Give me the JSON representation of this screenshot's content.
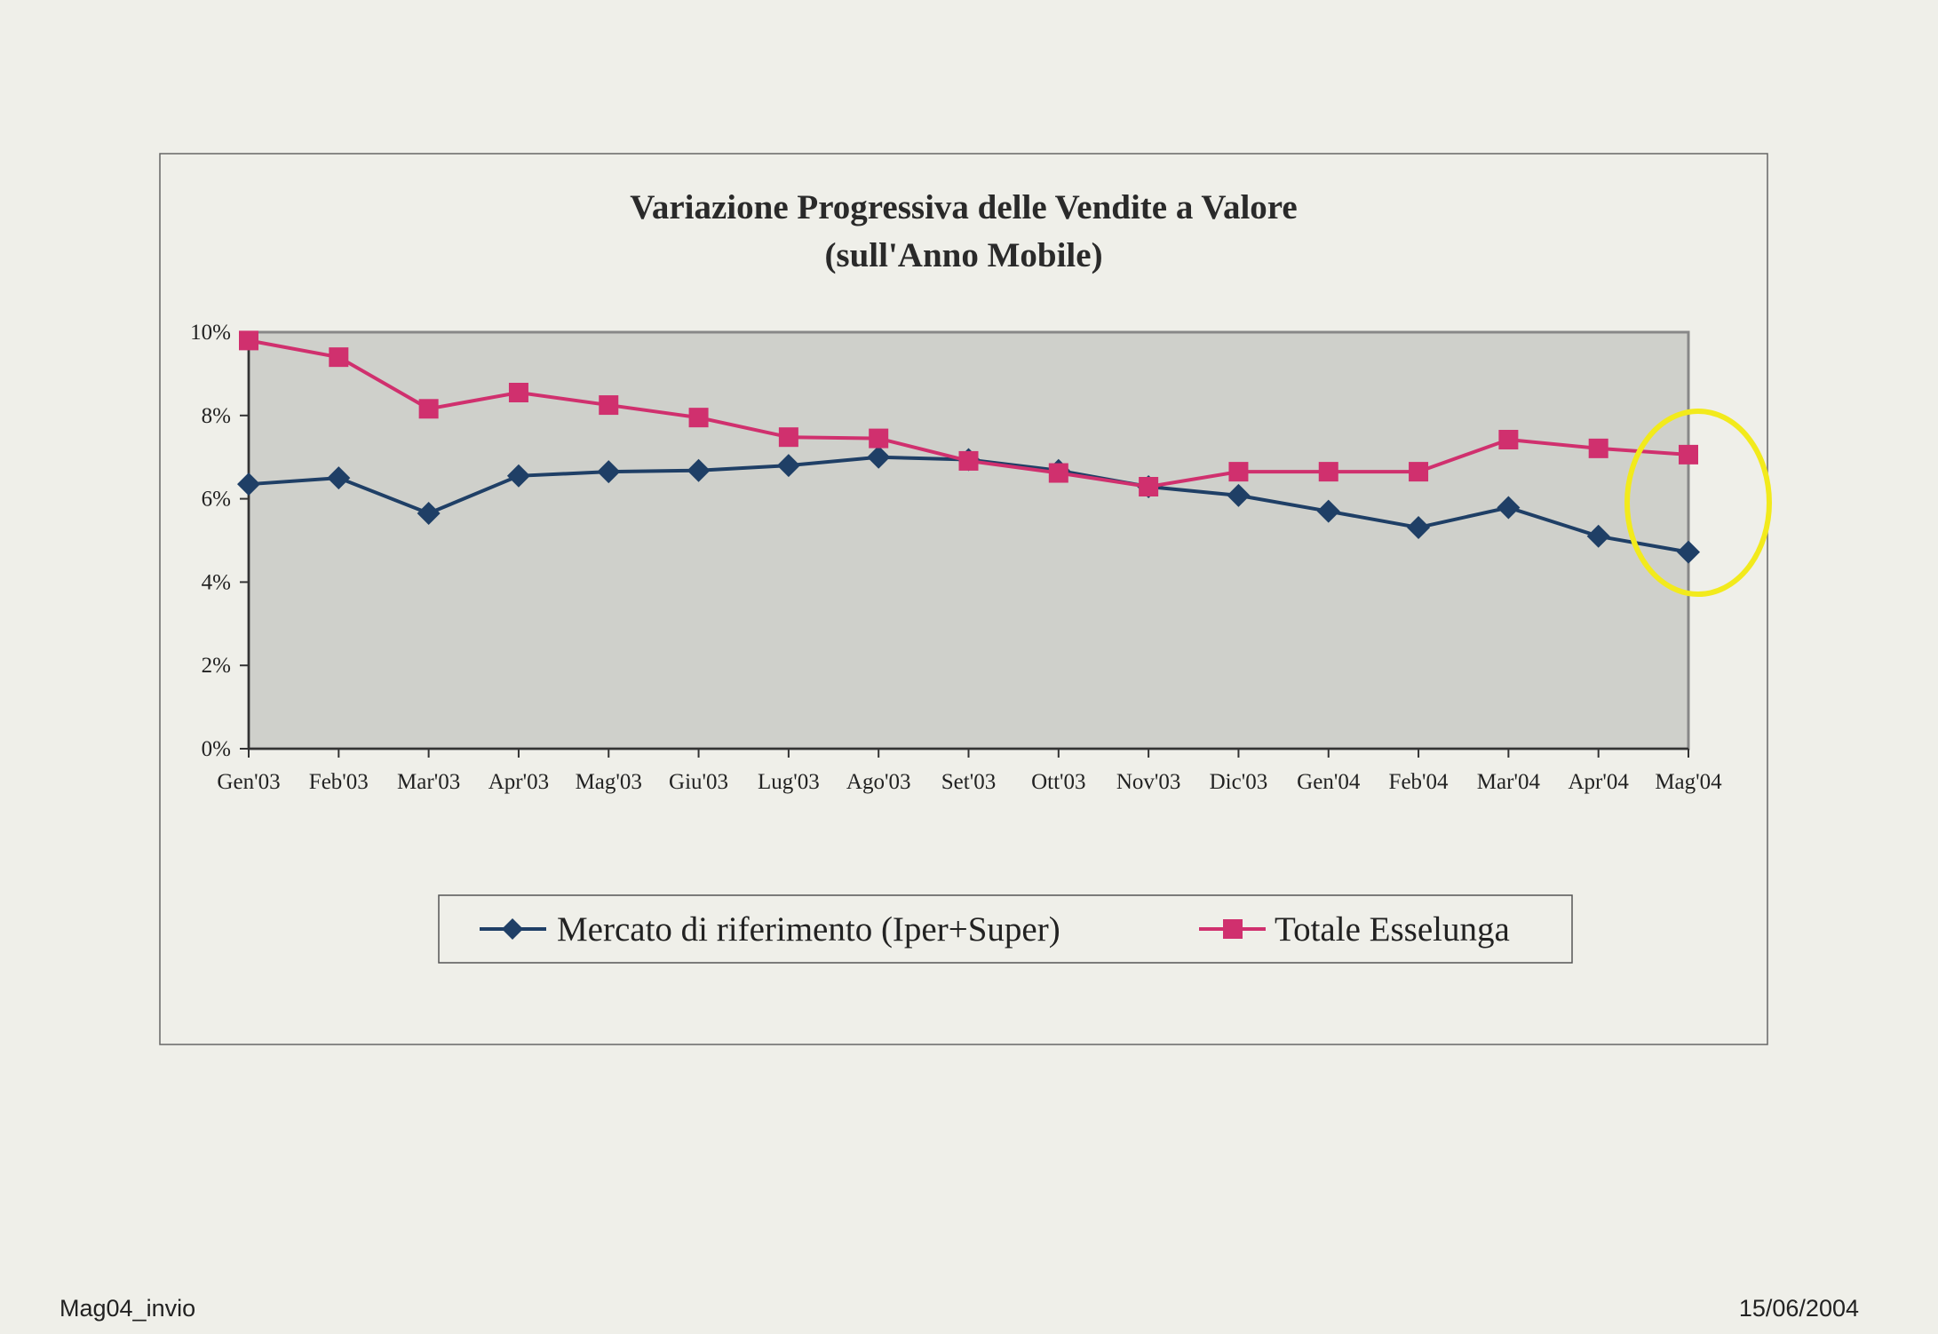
{
  "chart_data": {
    "type": "line",
    "title": "Variazione Progressiva delle Vendite a Valore",
    "subtitle": "(sull'Anno Mobile)",
    "xlabel": "",
    "ylabel": "",
    "ylim": [
      0,
      10
    ],
    "yticks": [
      "0%",
      "2%",
      "4%",
      "6%",
      "8%",
      "10%"
    ],
    "ytick_values": [
      0,
      2,
      4,
      6,
      8,
      10
    ],
    "categories": [
      "Gen'03",
      "Feb'03",
      "Mar'03",
      "Apr'03",
      "Mag'03",
      "Giu'03",
      "Lug'03",
      "Ago'03",
      "Set'03",
      "Ott'03",
      "Nov'03",
      "Dic'03",
      "Gen'04",
      "Feb'04",
      "Mar'04",
      "Apr'04",
      "Mag'04"
    ],
    "series": [
      {
        "name": "Mercato di riferimento (Iper+Super)",
        "color": "#1f3f66",
        "marker": "diamond",
        "values": [
          6.35,
          6.5,
          5.65,
          6.55,
          6.65,
          6.68,
          6.8,
          7.0,
          6.94,
          6.68,
          6.29,
          6.08,
          5.7,
          5.31,
          5.79,
          5.1,
          4.72
        ]
      },
      {
        "name": "Totale Esselunga",
        "color": "#d0306e",
        "marker": "square",
        "values": [
          9.8,
          9.4,
          8.16,
          8.55,
          8.25,
          7.95,
          7.48,
          7.45,
          6.91,
          6.62,
          6.29,
          6.65,
          6.65,
          6.65,
          7.42,
          7.21,
          7.06
        ]
      }
    ],
    "grid": false,
    "legend": "bottom",
    "plot_background": "#cfd0cb",
    "highlight_color": "#f2ea1c"
  },
  "footer": {
    "left": "Mag04_invio",
    "right": "15/06/2004"
  }
}
